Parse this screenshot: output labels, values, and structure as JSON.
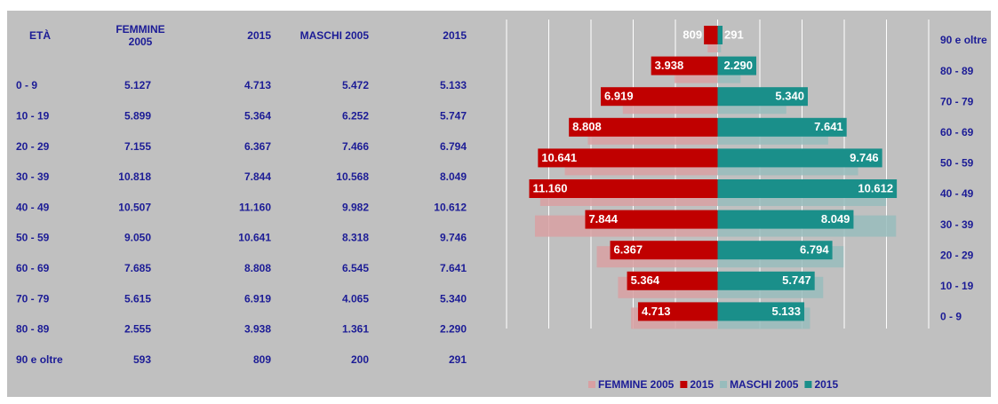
{
  "table": {
    "header": [
      "ETÀ",
      "FEMMINE 2005",
      "2015",
      "MASCHI 2005",
      "2015"
    ],
    "rows": [
      [
        "0 - 9",
        "5.127",
        "4.713",
        "5.472",
        "5.133"
      ],
      [
        "10 - 19",
        "5.899",
        "5.364",
        "6.252",
        "5.747"
      ],
      [
        "20 - 29",
        "7.155",
        "6.367",
        "7.466",
        "6.794"
      ],
      [
        "30 - 39",
        "10.818",
        "7.844",
        "10.568",
        "8.049"
      ],
      [
        "40 - 49",
        "10.507",
        "11.160",
        "9.982",
        "10.612"
      ],
      [
        "50 - 59",
        "9.050",
        "10.641",
        "8.318",
        "9.746"
      ],
      [
        "60 - 69",
        "7.685",
        "8.808",
        "6.545",
        "7.641"
      ],
      [
        "70 - 79",
        "5.615",
        "6.919",
        "4.065",
        "5.340"
      ],
      [
        "80 - 89",
        "2.555",
        "3.938",
        "1.361",
        "2.290"
      ],
      [
        "90 e oltre",
        "593",
        "809",
        "200",
        "291"
      ]
    ]
  },
  "chart_data": {
    "type": "pyramid",
    "categories": [
      "90 e oltre",
      "80 - 89",
      "70 - 79",
      "60 - 69",
      "50 - 59",
      "40 - 49",
      "30 - 39",
      "20 - 29",
      "10 - 19",
      "0 - 9"
    ],
    "series": [
      {
        "name": "FEMMINE 2005",
        "color": "#d8a0a2",
        "side": "left",
        "values": [
          593,
          2555,
          5615,
          7685,
          9050,
          10507,
          10818,
          7155,
          5899,
          5127
        ]
      },
      {
        "name": "2015",
        "color": "#c00000",
        "side": "left",
        "values": [
          809,
          3938,
          6919,
          8808,
          10641,
          11160,
          7844,
          6367,
          5364,
          4713
        ],
        "value_labels": [
          "809",
          "3.938",
          "6.919",
          "8.808",
          "10.641",
          "11.160",
          "7.844",
          "6.367",
          "5.364",
          "4.713"
        ]
      },
      {
        "name": "MASCHI 2005",
        "color": "#98bcbc",
        "side": "right",
        "values": [
          200,
          1361,
          4065,
          6545,
          8318,
          9982,
          10568,
          7466,
          6252,
          5472
        ]
      },
      {
        "name": "2015",
        "color": "#1a8f8a",
        "side": "right",
        "values": [
          291,
          2290,
          5340,
          7641,
          9746,
          10612,
          8049,
          6794,
          5747,
          5133
        ],
        "value_labels": [
          "291",
          "2.290",
          "5.340",
          "7.641",
          "9.746",
          "10.612",
          "8.049",
          "6.794",
          "5.747",
          "5.133"
        ]
      }
    ],
    "xlim": [
      -12500,
      12500
    ],
    "xticks": [
      -12500,
      -10000,
      -7500,
      -5000,
      -2500,
      0,
      2500,
      5000,
      7500,
      10000,
      12500
    ],
    "grid": true
  }
}
